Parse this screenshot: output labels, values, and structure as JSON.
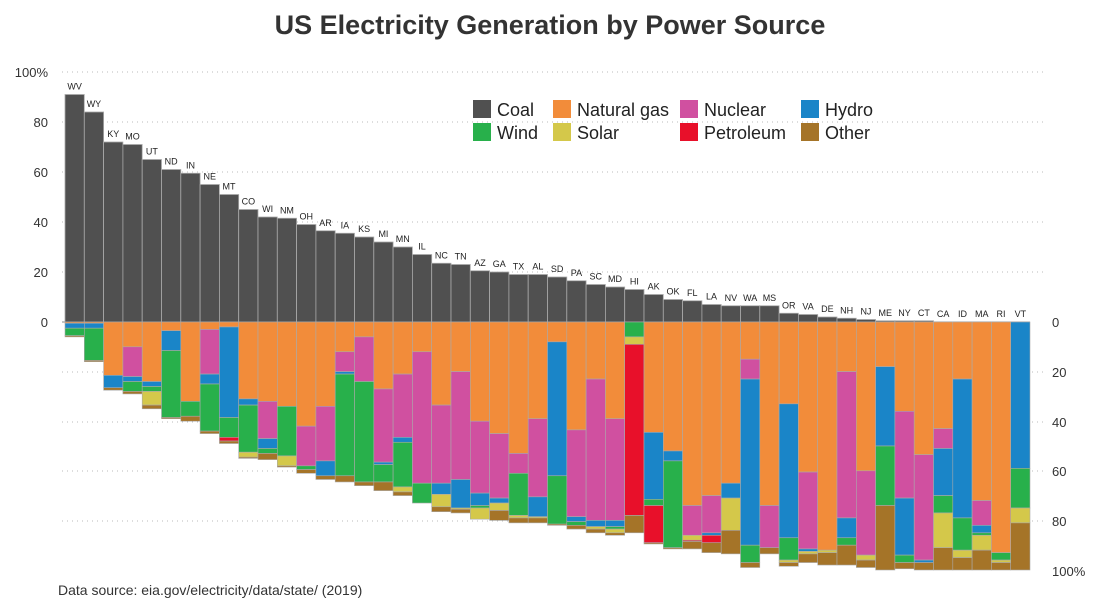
{
  "chart_data": {
    "type": "bar",
    "title": "US Electricity Generation by Power Source",
    "source_note": "Data source: eia.gov/electricity/data/state/  (2019)",
    "upper_axis": {
      "ylim": [
        0,
        100
      ],
      "ticks": [
        "100%",
        "80",
        "60",
        "40",
        "20",
        "0"
      ]
    },
    "lower_axis": {
      "ylim": [
        0,
        100
      ],
      "ticks": [
        "0",
        "20",
        "40",
        "60",
        "80",
        "100%"
      ]
    },
    "series": [
      {
        "name": "Coal",
        "color": "#505050"
      },
      {
        "name": "Natural gas",
        "color": "#f28c3a"
      },
      {
        "name": "Nuclear",
        "color": "#d050a0"
      },
      {
        "name": "Hydro",
        "color": "#1a85c8"
      },
      {
        "name": "Wind",
        "color": "#28b04b"
      },
      {
        "name": "Solar",
        "color": "#d4c84a"
      },
      {
        "name": "Petroleum",
        "color": "#e8102a"
      },
      {
        "name": "Other",
        "color": "#a57428"
      }
    ],
    "stack_order": [
      "Natural gas",
      "Nuclear",
      "Hydro",
      "Wind",
      "Solar",
      "Petroleum",
      "Other"
    ],
    "states": [
      {
        "name": "WV",
        "coal": 91,
        "gas": 0.5,
        "nuclear": 0,
        "hydro": 2,
        "wind": 3,
        "solar": 0,
        "petroleum": 0,
        "other": 0.5
      },
      {
        "name": "WY",
        "coal": 84,
        "gas": 0.5,
        "nuclear": 0,
        "hydro": 2,
        "wind": 13,
        "solar": 0,
        "petroleum": 0,
        "other": 0.5
      },
      {
        "name": "KY",
        "coal": 72,
        "gas": 21.5,
        "nuclear": 0,
        "hydro": 5,
        "wind": 0,
        "solar": 0,
        "petroleum": 0,
        "other": 1
      },
      {
        "name": "MO",
        "coal": 71,
        "gas": 10,
        "nuclear": 12,
        "hydro": 2,
        "wind": 4,
        "solar": 0,
        "petroleum": 0,
        "other": 1
      },
      {
        "name": "UT",
        "coal": 65,
        "gas": 24,
        "nuclear": 0,
        "hydro": 2,
        "wind": 2,
        "solar": 5.5,
        "petroleum": 0,
        "other": 1.5
      },
      {
        "name": "ND",
        "coal": 61,
        "gas": 3.5,
        "nuclear": 0,
        "hydro": 8,
        "wind": 27,
        "solar": 0,
        "petroleum": 0,
        "other": 0.5
      },
      {
        "name": "IN",
        "coal": 59.5,
        "gas": 32,
        "nuclear": 0,
        "hydro": 0,
        "wind": 6,
        "solar": 0,
        "petroleum": 0,
        "other": 2
      },
      {
        "name": "NE",
        "coal": 55,
        "gas": 3,
        "nuclear": 18,
        "hydro": 4,
        "wind": 19,
        "solar": 0,
        "petroleum": 0,
        "other": 1
      },
      {
        "name": "MT",
        "coal": 51,
        "gas": 2,
        "nuclear": 0,
        "hydro": 36.5,
        "wind": 8,
        "solar": 0,
        "petroleum": 1.5,
        "other": 1
      },
      {
        "name": "CO",
        "coal": 45,
        "gas": 31,
        "nuclear": 0,
        "hydro": 2.5,
        "wind": 19,
        "solar": 2,
        "petroleum": 0,
        "other": 0.5
      },
      {
        "name": "WI",
        "coal": 42,
        "gas": 32,
        "nuclear": 15,
        "hydro": 4,
        "wind": 2,
        "solar": 0,
        "petroleum": 0,
        "other": 2.5
      },
      {
        "name": "NM",
        "coal": 41.5,
        "gas": 34,
        "nuclear": 0,
        "hydro": 0,
        "wind": 20,
        "solar": 4,
        "petroleum": 0,
        "other": 0.5
      },
      {
        "name": "OH",
        "coal": 39,
        "gas": 42,
        "nuclear": 16,
        "hydro": 0,
        "wind": 1.5,
        "solar": 0,
        "petroleum": 0,
        "other": 1.5
      },
      {
        "name": "AR",
        "coal": 36.5,
        "gas": 34,
        "nuclear": 22,
        "hydro": 6,
        "wind": 0,
        "solar": 0,
        "petroleum": 0,
        "other": 1.5
      },
      {
        "name": "IA",
        "coal": 35.5,
        "gas": 12,
        "nuclear": 8,
        "hydro": 1,
        "wind": 41,
        "solar": 0,
        "petroleum": 0,
        "other": 2.5
      },
      {
        "name": "KS",
        "coal": 34,
        "gas": 6,
        "nuclear": 18,
        "hydro": 0,
        "wind": 40.5,
        "solar": 0,
        "petroleum": 0,
        "other": 1.5
      },
      {
        "name": "MI",
        "coal": 32,
        "gas": 27,
        "nuclear": 29.5,
        "hydro": 1,
        "wind": 7,
        "solar": 0,
        "petroleum": 0,
        "other": 3.5
      },
      {
        "name": "MN",
        "coal": 30,
        "gas": 21,
        "nuclear": 25.5,
        "hydro": 2,
        "wind": 18,
        "solar": 2,
        "petroleum": 0,
        "other": 1.5
      },
      {
        "name": "IL",
        "coal": 27,
        "gas": 12,
        "nuclear": 53,
        "hydro": 0,
        "wind": 8,
        "solar": 0,
        "petroleum": 0,
        "other": 0
      },
      {
        "name": "NC",
        "coal": 23.5,
        "gas": 33.5,
        "nuclear": 31.5,
        "hydro": 4.5,
        "wind": 0,
        "solar": 5,
        "petroleum": 0,
        "other": 2
      },
      {
        "name": "TN",
        "coal": 23,
        "gas": 20,
        "nuclear": 43.5,
        "hydro": 11.5,
        "wind": 0,
        "solar": 0.5,
        "petroleum": 0,
        "other": 1.5
      },
      {
        "name": "AZ",
        "coal": 20.5,
        "gas": 40,
        "nuclear": 29,
        "hydro": 5,
        "wind": 1,
        "solar": 4.5,
        "petroleum": 0,
        "other": 0
      },
      {
        "name": "GA",
        "coal": 20,
        "gas": 45,
        "nuclear": 26,
        "hydro": 2,
        "wind": 0,
        "solar": 3,
        "petroleum": 0,
        "other": 4
      },
      {
        "name": "TX",
        "coal": 19,
        "gas": 53,
        "nuclear": 8,
        "hydro": 0,
        "wind": 17,
        "solar": 1,
        "petroleum": 0,
        "other": 2
      },
      {
        "name": "AL",
        "coal": 19,
        "gas": 39,
        "nuclear": 31.5,
        "hydro": 8,
        "wind": 0,
        "solar": 0.5,
        "petroleum": 0,
        "other": 2
      },
      {
        "name": "SD",
        "coal": 18,
        "gas": 8,
        "nuclear": 0,
        "hydro": 54,
        "wind": 19.5,
        "solar": 0,
        "petroleum": 0,
        "other": 0.5
      },
      {
        "name": "PA",
        "coal": 16.5,
        "gas": 43.5,
        "nuclear": 35,
        "hydro": 2,
        "wind": 1.5,
        "solar": 0,
        "petroleum": 0,
        "other": 1.5
      },
      {
        "name": "SC",
        "coal": 15,
        "gas": 23,
        "nuclear": 57,
        "hydro": 2.5,
        "wind": 0,
        "solar": 1,
        "petroleum": 0,
        "other": 1.5
      },
      {
        "name": "MD",
        "coal": 14,
        "gas": 39,
        "nuclear": 41,
        "hydro": 2.5,
        "wind": 1,
        "solar": 1.5,
        "petroleum": 0,
        "other": 1
      },
      {
        "name": "HI",
        "coal": 13,
        "gas": 0,
        "nuclear": 0,
        "hydro": 0,
        "wind": 6,
        "solar": 3,
        "petroleum": 69,
        "other": 7
      },
      {
        "name": "AK",
        "coal": 11,
        "gas": 44.5,
        "nuclear": 0,
        "hydro": 27,
        "wind": 2.5,
        "solar": 0,
        "petroleum": 15,
        "other": 0.5
      },
      {
        "name": "OK",
        "coal": 9,
        "gas": 52,
        "nuclear": 0,
        "hydro": 4,
        "wind": 35,
        "solar": 0,
        "petroleum": 0,
        "other": 0.5
      },
      {
        "name": "FL",
        "coal": 8.5,
        "gas": 74,
        "nuclear": 12,
        "hydro": 0,
        "wind": 0,
        "solar": 2,
        "petroleum": 0.5,
        "other": 3
      },
      {
        "name": "LA",
        "coal": 7,
        "gas": 70,
        "nuclear": 15,
        "hydro": 1,
        "wind": 0,
        "solar": 0,
        "petroleum": 3,
        "other": 4
      },
      {
        "name": "NV",
        "coal": 6.5,
        "gas": 65,
        "nuclear": 0,
        "hydro": 6,
        "wind": 0,
        "solar": 13,
        "petroleum": 0,
        "other": 9.5
      },
      {
        "name": "WA",
        "coal": 6.5,
        "gas": 15,
        "nuclear": 8,
        "hydro": 67,
        "wind": 7,
        "solar": 0,
        "petroleum": 0,
        "other": 2
      },
      {
        "name": "MS",
        "coal": 6.5,
        "gas": 74,
        "nuclear": 17,
        "hydro": 0,
        "wind": 0,
        "solar": 0,
        "petroleum": 0,
        "other": 2.5
      },
      {
        "name": "OR",
        "coal": 3.5,
        "gas": 33,
        "nuclear": 0,
        "hydro": 54,
        "wind": 9,
        "solar": 1,
        "petroleum": 0,
        "other": 1.5
      },
      {
        "name": "VA",
        "coal": 3,
        "gas": 60.5,
        "nuclear": 31,
        "hydro": 1,
        "wind": 0,
        "solar": 1,
        "petroleum": 0,
        "other": 3.5
      },
      {
        "name": "DE",
        "coal": 2,
        "gas": 92,
        "nuclear": 0,
        "hydro": 0,
        "wind": 0,
        "solar": 1,
        "petroleum": 0,
        "other": 5
      },
      {
        "name": "NH",
        "coal": 1.5,
        "gas": 20,
        "nuclear": 59,
        "hydro": 8,
        "wind": 3,
        "solar": 0,
        "petroleum": 0,
        "other": 8
      },
      {
        "name": "NJ",
        "coal": 1,
        "gas": 60,
        "nuclear": 34,
        "hydro": 0,
        "wind": 0,
        "solar": 2,
        "petroleum": 0,
        "other": 3
      },
      {
        "name": "ME",
        "coal": 0.5,
        "gas": 18,
        "nuclear": 0,
        "hydro": 32,
        "wind": 24,
        "solar": 0,
        "petroleum": 0,
        "other": 26
      },
      {
        "name": "NY",
        "coal": 0.5,
        "gas": 36,
        "nuclear": 35,
        "hydro": 23,
        "wind": 3,
        "solar": 0,
        "petroleum": 0,
        "other": 2.5
      },
      {
        "name": "CT",
        "coal": 0.5,
        "gas": 53.5,
        "nuclear": 42.5,
        "hydro": 1,
        "wind": 0,
        "solar": 0,
        "petroleum": 0,
        "other": 3
      },
      {
        "name": "CA",
        "coal": 0,
        "gas": 43,
        "nuclear": 8,
        "hydro": 19,
        "wind": 7,
        "solar": 14,
        "petroleum": 0,
        "other": 9
      },
      {
        "name": "ID",
        "coal": 0,
        "gas": 23,
        "nuclear": 0,
        "hydro": 56,
        "wind": 13,
        "solar": 3,
        "petroleum": 0,
        "other": 5
      },
      {
        "name": "MA",
        "coal": 0,
        "gas": 72,
        "nuclear": 10,
        "hydro": 3,
        "wind": 1,
        "solar": 6,
        "petroleum": 0,
        "other": 8
      },
      {
        "name": "RI",
        "coal": 0,
        "gas": 93,
        "nuclear": 0,
        "hydro": 0,
        "wind": 3,
        "solar": 1,
        "petroleum": 0,
        "other": 3
      },
      {
        "name": "VT",
        "coal": 0,
        "gas": 0,
        "nuclear": 0,
        "hydro": 59,
        "wind": 16,
        "solar": 6,
        "petroleum": 0,
        "other": 19
      }
    ]
  }
}
